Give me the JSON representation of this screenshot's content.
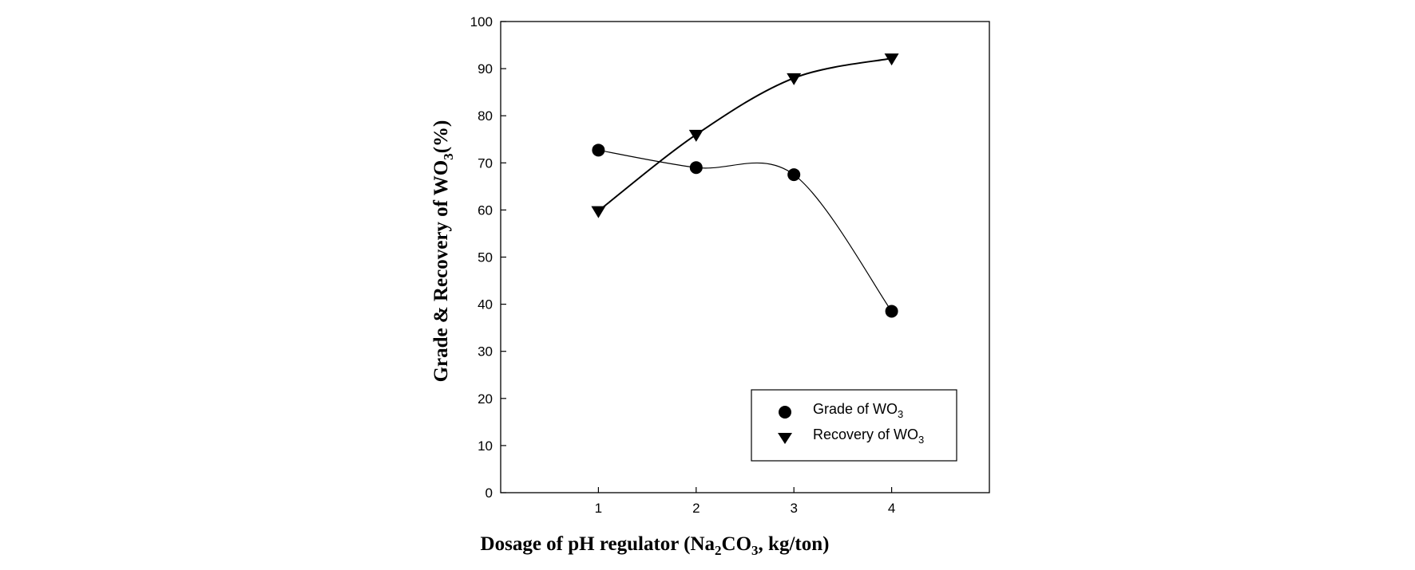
{
  "chart_data": {
    "type": "line",
    "title": "",
    "xlabel": {
      "prefix": "Dosage of pH regulator  (Na",
      "sub": "2",
      "mid": "CO",
      "sub2": "3",
      "suffix": ", kg/ton)"
    },
    "ylabel": {
      "prefix": "Grade & Recovery of WO",
      "sub": "3",
      "suffix": "(%)"
    },
    "xlim": [
      0,
      5
    ],
    "ylim": [
      0,
      100
    ],
    "xticks": [
      1,
      2,
      3,
      4
    ],
    "yticks": [
      0,
      10,
      20,
      30,
      40,
      50,
      60,
      70,
      80,
      90,
      100
    ],
    "grid": false,
    "legend_position": "bottom-right",
    "x": [
      1,
      2,
      3,
      4
    ],
    "series": [
      {
        "name": {
          "prefix": "Grade of WO",
          "sub": "3"
        },
        "marker": "circle",
        "values": [
          72.7,
          69.0,
          67.5,
          38.5
        ]
      },
      {
        "name": {
          "prefix": "Recovery of WO",
          "sub": "3"
        },
        "marker": "triangle-down",
        "values": [
          59.8,
          76.0,
          88.0,
          92.2
        ]
      }
    ]
  }
}
